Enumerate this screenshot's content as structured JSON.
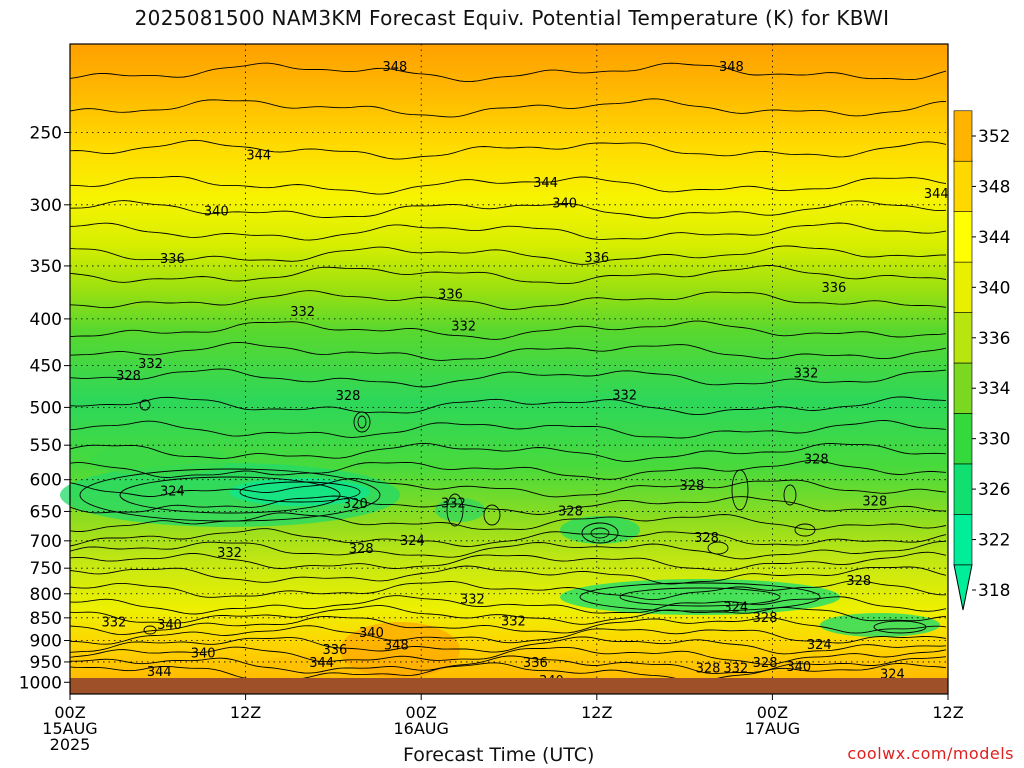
{
  "chart_data": {
    "type": "heatmap",
    "title": "2025081500 NAM3KM Forecast Equiv. Potential Temperature (K) for KBWI",
    "xlabel": "Forecast Time (UTC)",
    "ylabel": "",
    "x_ticks": [
      {
        "hour": 0,
        "lines": [
          "00Z",
          "15AUG",
          "2025"
        ]
      },
      {
        "hour": 12,
        "lines": [
          "12Z"
        ]
      },
      {
        "hour": 24,
        "lines": [
          "00Z",
          "16AUG"
        ]
      },
      {
        "hour": 36,
        "lines": [
          "12Z"
        ]
      },
      {
        "hour": 48,
        "lines": [
          "00Z",
          "17AUG"
        ]
      },
      {
        "hour": 60,
        "lines": [
          "12Z"
        ]
      }
    ],
    "xlim": [
      0,
      60
    ],
    "y_ticks": [
      250,
      300,
      350,
      400,
      450,
      500,
      550,
      600,
      650,
      700,
      750,
      800,
      850,
      900,
      950,
      1000
    ],
    "ylim": [
      1030,
      200
    ],
    "yscale": "log-pressure",
    "colorbar": {
      "labels": [
        318,
        322,
        326,
        330,
        334,
        336,
        340,
        344,
        348,
        352
      ],
      "colors": [
        "#00ee9a",
        "#10e070",
        "#34d93c",
        "#7ad820",
        "#b8e410",
        "#e8f000",
        "#ffff00",
        "#ffd800",
        "#ffb400",
        "#ff9a00"
      ]
    },
    "contour_labels": [
      {
        "text": "348",
        "hour": 22.2,
        "p": 212
      },
      {
        "text": "348",
        "hour": 45.2,
        "p": 212
      },
      {
        "text": "344",
        "hour": 12.9,
        "p": 265
      },
      {
        "text": "344",
        "hour": 32.5,
        "p": 284
      },
      {
        "text": "344",
        "hour": 59.2,
        "p": 292
      },
      {
        "text": "340",
        "hour": 10.0,
        "p": 305
      },
      {
        "text": "340",
        "hour": 33.8,
        "p": 299
      },
      {
        "text": "336",
        "hour": 7.0,
        "p": 344
      },
      {
        "text": "336",
        "hour": 36.0,
        "p": 343
      },
      {
        "text": "336",
        "hour": 26.0,
        "p": 376
      },
      {
        "text": "336",
        "hour": 52.2,
        "p": 370
      },
      {
        "text": "332",
        "hour": 15.9,
        "p": 393
      },
      {
        "text": "332",
        "hour": 26.9,
        "p": 408
      },
      {
        "text": "332",
        "hour": 5.5,
        "p": 448
      },
      {
        "text": "328",
        "hour": 4.0,
        "p": 462
      },
      {
        "text": "332",
        "hour": 37.9,
        "p": 485
      },
      {
        "text": "332",
        "hour": 50.3,
        "p": 459
      },
      {
        "text": "328",
        "hour": 19.0,
        "p": 486
      },
      {
        "text": "324",
        "hour": 7.0,
        "p": 618
      },
      {
        "text": "320",
        "hour": 19.5,
        "p": 638
      },
      {
        "text": "332",
        "hour": 26.2,
        "p": 637
      },
      {
        "text": "328",
        "hour": 42.5,
        "p": 610
      },
      {
        "text": "328",
        "hour": 51.0,
        "p": 570
      },
      {
        "text": "328",
        "hour": 55.0,
        "p": 634
      },
      {
        "text": "328",
        "hour": 34.2,
        "p": 650
      },
      {
        "text": "328",
        "hour": 43.5,
        "p": 695
      },
      {
        "text": "324",
        "hour": 23.4,
        "p": 700
      },
      {
        "text": "328",
        "hour": 19.9,
        "p": 715
      },
      {
        "text": "332",
        "hour": 10.9,
        "p": 722
      },
      {
        "text": "328",
        "hour": 53.9,
        "p": 775
      },
      {
        "text": "332",
        "hour": 27.5,
        "p": 812
      },
      {
        "text": "324",
        "hour": 45.5,
        "p": 828
      },
      {
        "text": "328",
        "hour": 47.5,
        "p": 850
      },
      {
        "text": "332",
        "hour": 3.0,
        "p": 860
      },
      {
        "text": "340",
        "hour": 6.8,
        "p": 865
      },
      {
        "text": "332",
        "hour": 30.3,
        "p": 858
      },
      {
        "text": "340",
        "hour": 20.6,
        "p": 883
      },
      {
        "text": "348",
        "hour": 22.3,
        "p": 912
      },
      {
        "text": "336",
        "hour": 18.1,
        "p": 922
      },
      {
        "text": "340",
        "hour": 9.1,
        "p": 930
      },
      {
        "text": "344",
        "hour": 17.2,
        "p": 953
      },
      {
        "text": "344",
        "hour": 6.1,
        "p": 975
      },
      {
        "text": "336",
        "hour": 31.8,
        "p": 953
      },
      {
        "text": "340",
        "hour": 32.9,
        "p": 997
      },
      {
        "text": "328",
        "hour": 43.6,
        "p": 966
      },
      {
        "text": "332",
        "hour": 45.5,
        "p": 966
      },
      {
        "text": "328",
        "hour": 47.5,
        "p": 952
      },
      {
        "text": "340",
        "hour": 49.8,
        "p": 962
      },
      {
        "text": "324",
        "hour": 51.2,
        "p": 910
      },
      {
        "text": "324",
        "hour": 56.2,
        "p": 981
      }
    ],
    "legend": "colorbar-right",
    "grid": true
  },
  "footer": {
    "credit": "coolwx.com/models"
  }
}
